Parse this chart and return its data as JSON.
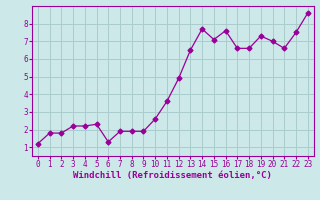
{
  "x": [
    0,
    1,
    2,
    3,
    4,
    5,
    6,
    7,
    8,
    9,
    10,
    11,
    12,
    13,
    14,
    15,
    16,
    17,
    18,
    19,
    20,
    21,
    22,
    23
  ],
  "y": [
    1.2,
    1.8,
    1.8,
    2.2,
    2.2,
    2.3,
    1.3,
    1.9,
    1.9,
    1.9,
    2.6,
    3.6,
    4.9,
    6.5,
    7.7,
    7.1,
    7.6,
    6.6,
    6.6,
    7.3,
    7.0,
    6.6,
    7.5,
    8.6
  ],
  "line_color": "#990099",
  "marker": "D",
  "markersize": 2.5,
  "linewidth": 0.9,
  "xlabel": "Windchill (Refroidissement éolien,°C)",
  "xlabel_fontsize": 6.5,
  "tick_fontsize": 5.5,
  "background_color": "#cce8e8",
  "grid_color": "#aacccc",
  "xlim": [
    -0.5,
    23.5
  ],
  "ylim": [
    0.5,
    9.0
  ],
  "yticks": [
    1,
    2,
    3,
    4,
    5,
    6,
    7,
    8
  ],
  "xticks": [
    0,
    1,
    2,
    3,
    4,
    5,
    6,
    7,
    8,
    9,
    10,
    11,
    12,
    13,
    14,
    15,
    16,
    17,
    18,
    19,
    20,
    21,
    22,
    23
  ]
}
